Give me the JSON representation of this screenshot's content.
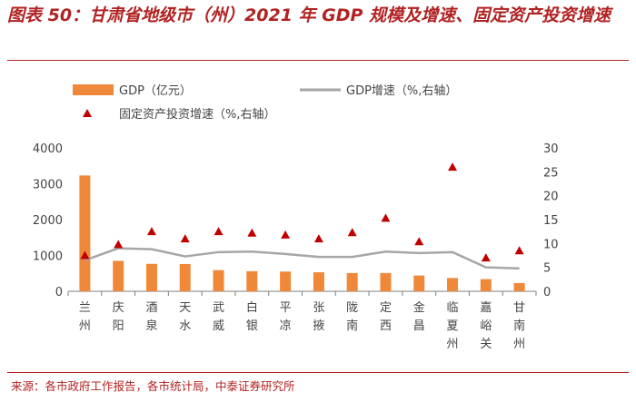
{
  "header": {
    "title": "图表 50：甘肃省地级市（州）2021 年 GDP 规模及增速、固定资产投资增速"
  },
  "footer": {
    "source": "来源：各市政府工作报告，各市统计局，中泰证券研究所"
  },
  "chart_data": {
    "type": "bar",
    "title": "甘肃省地级市（州）2021 年 GDP 规模及增速、固定资产投资增速",
    "categories": [
      "兰州",
      "庆阳",
      "酒泉",
      "天水",
      "武威",
      "白银",
      "平凉",
      "张掖",
      "陇南",
      "定西",
      "金昌",
      "临夏州",
      "嘉峪关",
      "甘南州"
    ],
    "series": [
      {
        "name": "GDP（亿元）",
        "type": "bar",
        "axis": "left",
        "color": "#f0883a",
        "values": [
          3231,
          850,
          765,
          760,
          590,
          560,
          550,
          530,
          510,
          510,
          440,
          370,
          340,
          230
        ]
      },
      {
        "name": "GDP增速（%,右轴）",
        "type": "line",
        "axis": "right",
        "color": "#a6a6a6",
        "values": [
          6.5,
          9.0,
          8.8,
          7.3,
          8.2,
          8.3,
          7.8,
          7.2,
          7.2,
          8.3,
          8.0,
          8.2,
          5.0,
          4.8
        ]
      },
      {
        "name": "固定资产投资增速（%,右轴）",
        "type": "scatter",
        "axis": "right",
        "color": "#c00000",
        "values": [
          7.5,
          9.8,
          12.5,
          11.0,
          12.5,
          12.2,
          11.8,
          11.0,
          12.3,
          15.3,
          10.4,
          26.0,
          7.0,
          8.5
        ]
      }
    ],
    "y_left": {
      "min": 0,
      "max": 4000,
      "ticks": [
        "0",
        "1000",
        "2000",
        "3000",
        "4000"
      ]
    },
    "y_right": {
      "min": 0,
      "max": 30,
      "ticks": [
        "0",
        "5",
        "10",
        "15",
        "20",
        "25",
        "30"
      ]
    },
    "legend_position": "top"
  }
}
